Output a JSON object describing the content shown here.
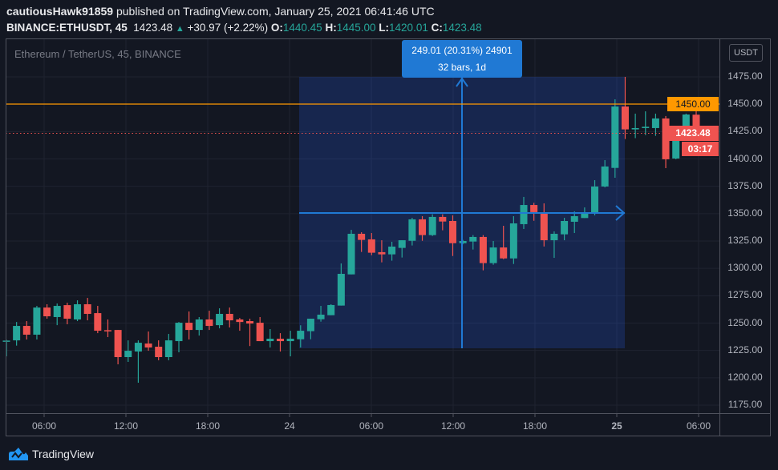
{
  "header": {
    "author": "cautiousHawk91859",
    "published_text": "published on TradingView.com, January 25, 2021 06:41:46 UTC",
    "symbol": "BINANCE:ETHUSDT, 45",
    "last": "1423.48",
    "change": "+30.97 (+2.22%)",
    "o_label": "O:",
    "o": "1440.45",
    "h_label": "H:",
    "h": "1445.00",
    "l_label": "L:",
    "l": "1420.01",
    "c_label": "C:",
    "c": "1423.48"
  },
  "legend": "Ethereum / TetherUS, 45, BINANCE",
  "currency_button": "USDT",
  "measure": {
    "line1": "249.01 (20.31%) 24901",
    "line2": "32 bars, 1d"
  },
  "horizontal_line_label": "1450.00",
  "last_price_label": "1423.48",
  "countdown": "03:17",
  "brand": "TradingView",
  "colors": {
    "up": "#26a69a",
    "down": "#ef5350",
    "hline": "#ff9800",
    "measure": "#2079d4",
    "background": "#131722"
  },
  "chart_data": {
    "type": "candlestick",
    "interval": "45",
    "ylim": [
      1162,
      1480
    ],
    "y_ticks": [
      "1475.00",
      "1450.00",
      "1425.00",
      "1400.00",
      "1375.00",
      "1350.00",
      "1325.00",
      "1300.00",
      "1275.00",
      "1250.00",
      "1225.00",
      "1200.00",
      "1175.00"
    ],
    "x_ticks": [
      "06:00",
      "12:00",
      "18:00",
      "24",
      "06:00",
      "12:00",
      "18:00",
      "25",
      "06:00"
    ],
    "grid": true,
    "horizontal_line": 1450.0,
    "last_price": 1423.48,
    "candles_ohlc": [
      [
        1233,
        1234.7,
        1219.6,
        1234
      ],
      [
        1234.2,
        1251,
        1229.4,
        1247.4
      ],
      [
        1247.4,
        1251.8,
        1235,
        1239.4
      ],
      [
        1239.4,
        1265.7,
        1235,
        1264.2
      ],
      [
        1264.2,
        1267.2,
        1254,
        1256.2
      ],
      [
        1255.5,
        1267.9,
        1248.1,
        1265.7
      ],
      [
        1266.4,
        1268.6,
        1248.9,
        1254
      ],
      [
        1253.3,
        1270.8,
        1251.8,
        1267.2
      ],
      [
        1267.2,
        1273,
        1252.5,
        1258.4
      ],
      [
        1259.1,
        1265.7,
        1240.8,
        1243
      ],
      [
        1243.5,
        1253.3,
        1237.2,
        1243.1
      ],
      [
        1243.7,
        1243.7,
        1212.3,
        1218.9
      ],
      [
        1218.9,
        1234.2,
        1214.5,
        1224.7
      ],
      [
        1224,
        1234.2,
        1195.5,
        1232
      ],
      [
        1231.3,
        1242.3,
        1224.7,
        1227.7
      ],
      [
        1228.4,
        1234.2,
        1216,
        1218.9
      ],
      [
        1218.9,
        1240.1,
        1216,
        1234.2
      ],
      [
        1233.5,
        1251,
        1223.3,
        1250.3
      ],
      [
        1250.3,
        1260.6,
        1235,
        1243.7
      ],
      [
        1243.7,
        1255.5,
        1238.6,
        1253.3
      ],
      [
        1253.3,
        1261.3,
        1243.7,
        1247.4
      ],
      [
        1248.1,
        1263.5,
        1245.2,
        1258.4
      ],
      [
        1258.4,
        1264.2,
        1246,
        1252.5
      ],
      [
        1253.3,
        1254.7,
        1243,
        1251
      ],
      [
        1251.8,
        1254,
        1229,
        1249.6
      ],
      [
        1250.3,
        1255.5,
        1233.5,
        1233.5
      ],
      [
        1233.5,
        1244.5,
        1227.7,
        1235.7
      ],
      [
        1235.7,
        1240.8,
        1224,
        1233.5
      ],
      [
        1233.5,
        1243,
        1219.6,
        1235.7
      ],
      [
        1235.2,
        1248,
        1227.7,
        1243
      ],
      [
        1242.6,
        1254,
        1235.2,
        1254
      ],
      [
        1253.5,
        1265.7,
        1251.3,
        1257.7
      ],
      [
        1257.2,
        1267.2,
        1257.2,
        1266.5
      ],
      [
        1266,
        1304.5,
        1266,
        1295
      ],
      [
        1294.5,
        1335.2,
        1294.5,
        1331.6
      ],
      [
        1331.6,
        1333,
        1315,
        1326
      ],
      [
        1326.5,
        1332.3,
        1312,
        1314.3
      ],
      [
        1314.8,
        1325.7,
        1305.5,
        1312.8
      ],
      [
        1312.8,
        1324.3,
        1307,
        1319.9
      ],
      [
        1318.7,
        1325.7,
        1309.9,
        1325.7
      ],
      [
        1325.2,
        1346.2,
        1320.9,
        1344.8
      ],
      [
        1344.8,
        1347.7,
        1325.2,
        1330.4
      ],
      [
        1330.4,
        1349.4,
        1329.6,
        1347
      ],
      [
        1347,
        1349.4,
        1334.8,
        1342.8
      ],
      [
        1343.3,
        1348.4,
        1311.3,
        1323
      ],
      [
        1323,
        1326,
        1322,
        1325
      ],
      [
        1324.5,
        1330.4,
        1317.2,
        1328.7
      ],
      [
        1328.7,
        1330.4,
        1298.2,
        1304.8
      ],
      [
        1304.8,
        1325,
        1303.3,
        1319.1
      ],
      [
        1319.1,
        1338.9,
        1308.4,
        1309.1
      ],
      [
        1309.1,
        1347.7,
        1304,
        1341.1
      ],
      [
        1340.4,
        1365.3,
        1336,
        1357.9
      ],
      [
        1357.9,
        1359.9,
        1343.5,
        1351.4
      ],
      [
        1350.1,
        1359.4,
        1320,
        1325.7
      ],
      [
        1325.7,
        1333.8,
        1309.6,
        1331.6
      ],
      [
        1331.1,
        1346.2,
        1325.7,
        1343.3
      ],
      [
        1342.6,
        1352.1,
        1332.3,
        1347.7
      ],
      [
        1346,
        1355.7,
        1346,
        1349.9
      ],
      [
        1350,
        1380.6,
        1348.4,
        1374.8
      ],
      [
        1374.8,
        1398.9,
        1374,
        1393.1
      ],
      [
        1391.8,
        1454.5,
        1382.8,
        1447.9
      ],
      [
        1447.9,
        1475,
        1418.2,
        1427
      ],
      [
        1427,
        1441.4,
        1419,
        1428.2
      ],
      [
        1428.2,
        1443.5,
        1421.8,
        1429.4
      ],
      [
        1428.2,
        1441.4,
        1421.1,
        1437
      ],
      [
        1437,
        1439.2,
        1391.6,
        1399.7
      ],
      [
        1400.4,
        1426.7,
        1399.7,
        1423.8
      ],
      [
        1423,
        1441.4,
        1423,
        1440.6
      ],
      [
        1440.45,
        1445,
        1420.01,
        1423.48
      ]
    ]
  }
}
